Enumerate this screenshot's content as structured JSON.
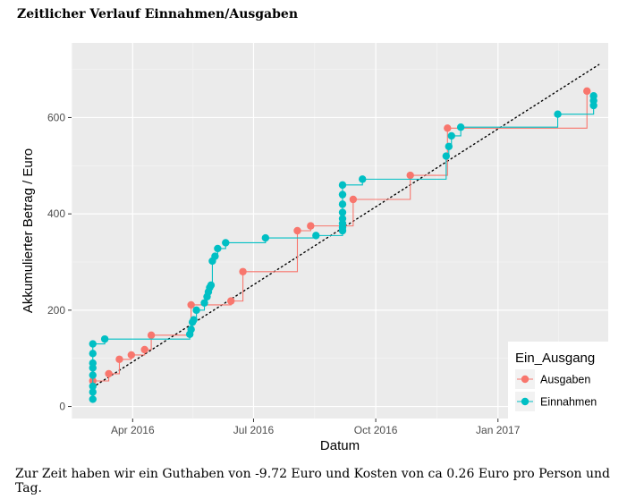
{
  "page": {
    "title": "Zeitlicher Verlauf Einnahmen/Ausgaben",
    "caption": "Zur Zeit haben wir ein Guthaben von -9.72 Euro und Kosten von ca 0.26 Euro pro Person und Tag."
  },
  "chart_data": {
    "type": "line",
    "step": true,
    "xlabel": "Datum",
    "ylabel": "Akkumulierter Betrag / Euro",
    "xlim": [
      "2016-02-15",
      "2017-03-25"
    ],
    "ylim": [
      -25,
      755
    ],
    "x_ticks": [
      {
        "date": "2016-04-01",
        "label": "Apr 2016"
      },
      {
        "date": "2016-07-01",
        "label": "Jul 2016"
      },
      {
        "date": "2016-10-01",
        "label": "Oct 2016"
      },
      {
        "date": "2017-01-01",
        "label": "Jan 2017"
      }
    ],
    "y_ticks": [
      0,
      200,
      400,
      600
    ],
    "grid": true,
    "legend": {
      "title": "Ein_Ausgang",
      "position": "bottom-right"
    },
    "trend": {
      "style": "dotted",
      "color": "#000000",
      "from": [
        "2016-03-02",
        40
      ],
      "to": [
        "2017-03-18",
        710
      ]
    },
    "series": [
      {
        "name": "Ausgaben",
        "color": "#F8766D",
        "points": [
          [
            "2016-03-02",
            53
          ],
          [
            "2016-03-14",
            68
          ],
          [
            "2016-03-22",
            98
          ],
          [
            "2016-03-31",
            107
          ],
          [
            "2016-04-10",
            118
          ],
          [
            "2016-04-15",
            148
          ],
          [
            "2016-05-15",
            211
          ],
          [
            "2016-06-14",
            219
          ],
          [
            "2016-06-23",
            280
          ],
          [
            "2016-08-03",
            365
          ],
          [
            "2016-08-13",
            375
          ],
          [
            "2016-09-14",
            430
          ],
          [
            "2016-10-27",
            480
          ],
          [
            "2016-11-24",
            578
          ],
          [
            "2017-03-09",
            655
          ]
        ]
      },
      {
        "name": "Einnahmen",
        "color": "#00BFC4",
        "points": [
          [
            "2016-03-02",
            15
          ],
          [
            "2016-03-02",
            30
          ],
          [
            "2016-03-02",
            42
          ],
          [
            "2016-03-02",
            65
          ],
          [
            "2016-03-02",
            80
          ],
          [
            "2016-03-02",
            90
          ],
          [
            "2016-03-02",
            110
          ],
          [
            "2016-03-02",
            130
          ],
          [
            "2016-03-11",
            140
          ],
          [
            "2016-05-14",
            150
          ],
          [
            "2016-05-15",
            160
          ],
          [
            "2016-05-16",
            175
          ],
          [
            "2016-05-17",
            180
          ],
          [
            "2016-05-19",
            200
          ],
          [
            "2016-05-25",
            215
          ],
          [
            "2016-05-27",
            228
          ],
          [
            "2016-05-28",
            238
          ],
          [
            "2016-05-29",
            247
          ],
          [
            "2016-05-30",
            252
          ],
          [
            "2016-05-31",
            302
          ],
          [
            "2016-06-02",
            312
          ],
          [
            "2016-06-04",
            328
          ],
          [
            "2016-06-10",
            340
          ],
          [
            "2016-07-10",
            350
          ],
          [
            "2016-08-17",
            355
          ],
          [
            "2016-09-06",
            365
          ],
          [
            "2016-09-06",
            372
          ],
          [
            "2016-09-06",
            380
          ],
          [
            "2016-09-06",
            390
          ],
          [
            "2016-09-06",
            403
          ],
          [
            "2016-09-06",
            420
          ],
          [
            "2016-09-06",
            440
          ],
          [
            "2016-09-06",
            460
          ],
          [
            "2016-09-21",
            472
          ],
          [
            "2016-11-23",
            520
          ],
          [
            "2016-11-25",
            540
          ],
          [
            "2016-11-27",
            562
          ],
          [
            "2016-12-04",
            580
          ],
          [
            "2017-02-15",
            607
          ],
          [
            "2017-03-14",
            625
          ],
          [
            "2017-03-14",
            635
          ],
          [
            "2017-03-14",
            645
          ]
        ]
      }
    ]
  }
}
